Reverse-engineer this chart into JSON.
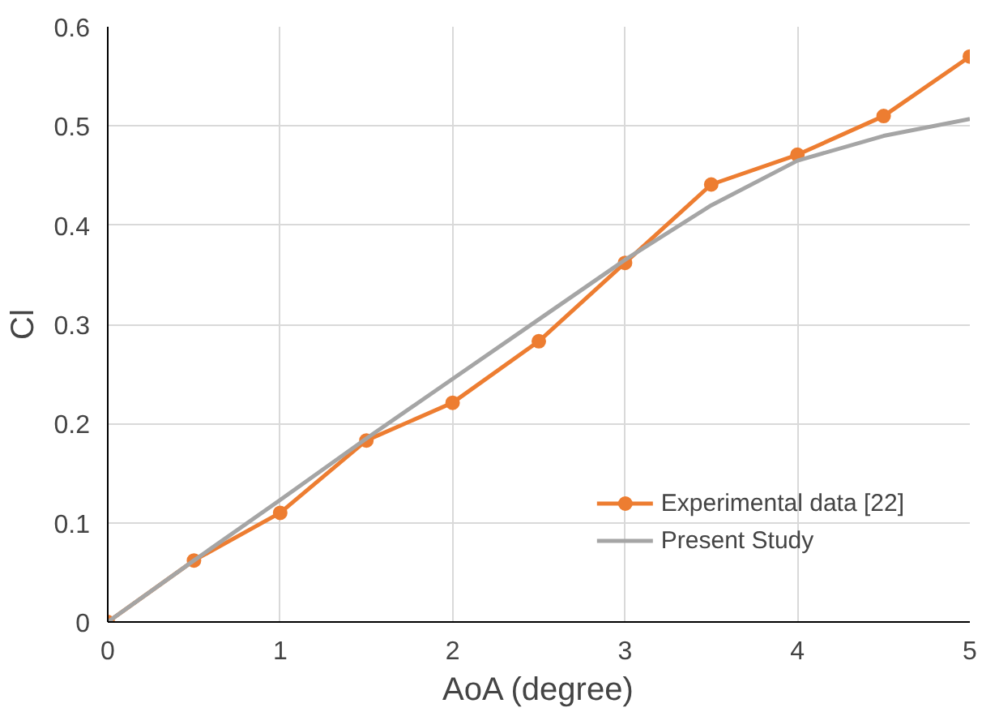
{
  "chart_data": {
    "type": "line",
    "xlabel": "AoA (degree)",
    "ylabel": "Cl",
    "xlim": [
      0,
      5
    ],
    "ylim": [
      0,
      0.6
    ],
    "xticks": [
      0,
      1,
      2,
      3,
      4,
      5
    ],
    "yticks": [
      0,
      0.1,
      0.2,
      0.3,
      0.4,
      0.5,
      0.6
    ],
    "grid": true,
    "legend": "bottom right",
    "series": [
      {
        "name": "Experimental data [22]",
        "color": "#ed7d31",
        "marker": "circle",
        "x": [
          0,
          0.5,
          1,
          1.5,
          2,
          2.5,
          3,
          3.5,
          4,
          4.5,
          5
        ],
        "values": [
          0,
          0.062,
          0.11,
          0.183,
          0.221,
          0.283,
          0.362,
          0.441,
          0.471,
          0.51,
          0.57
        ]
      },
      {
        "name": "Present Study",
        "color": "#a5a5a5",
        "marker": "none",
        "x": [
          0,
          0.5,
          1,
          1.5,
          2,
          2.5,
          3,
          3.5,
          4,
          4.5,
          5
        ],
        "values": [
          0,
          0.062,
          0.123,
          0.185,
          0.245,
          0.305,
          0.365,
          0.42,
          0.465,
          0.49,
          0.507
        ]
      }
    ]
  }
}
